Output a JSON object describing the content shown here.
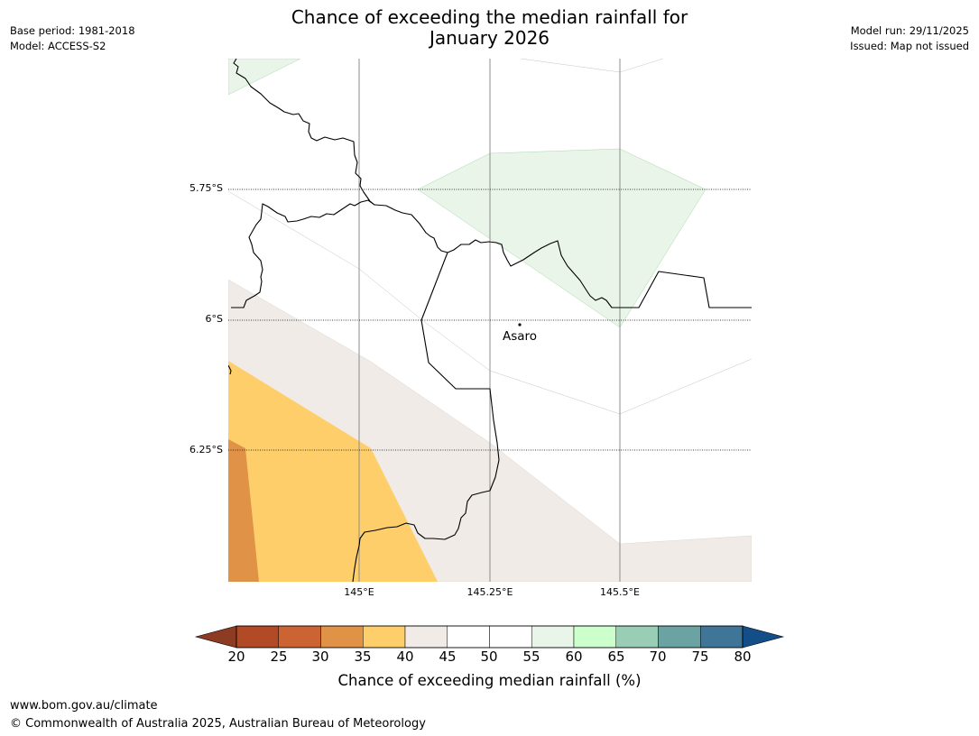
{
  "title": {
    "line1": "Chance of exceeding the median rainfall for",
    "line2": "January 2026"
  },
  "meta_left": {
    "base_period": "Base period: 1981-2018",
    "model": "Model: ACCESS-S2"
  },
  "meta_right": {
    "model_run": "Model run: 29/11/2025",
    "issued": "Issued: Map not issued"
  },
  "map": {
    "lat_labels": [
      "5.75°S",
      "6°S",
      "6.25°S"
    ],
    "lon_labels": [
      "145°E",
      "145.25°E",
      "145.5°E"
    ],
    "place_label": "Asaro",
    "extent": {
      "lon": [
        144.75,
        145.75
      ],
      "lat": [
        -5.5,
        -6.5
      ]
    }
  },
  "colorbar": {
    "ticks": [
      "20",
      "25",
      "30",
      "35",
      "40",
      "45",
      "50",
      "55",
      "60",
      "65",
      "70",
      "75",
      "80"
    ],
    "colors": [
      "#8e3b24",
      "#b24a26",
      "#cb6432",
      "#e09347",
      "#fece6b",
      "#f0ebe6",
      "#ffffff",
      "#ffffff",
      "#e8f5e8",
      "#ccffcc",
      "#99cdb5",
      "#6ba3a3",
      "#3f7698",
      "#134e89"
    ],
    "label": "Chance of exceeding median rainfall (%)"
  },
  "footer": {
    "url": "www.bom.gov.au/climate",
    "copyright": "© Commonwealth of Australia 2025, Australian Bureau of Meteorology"
  }
}
